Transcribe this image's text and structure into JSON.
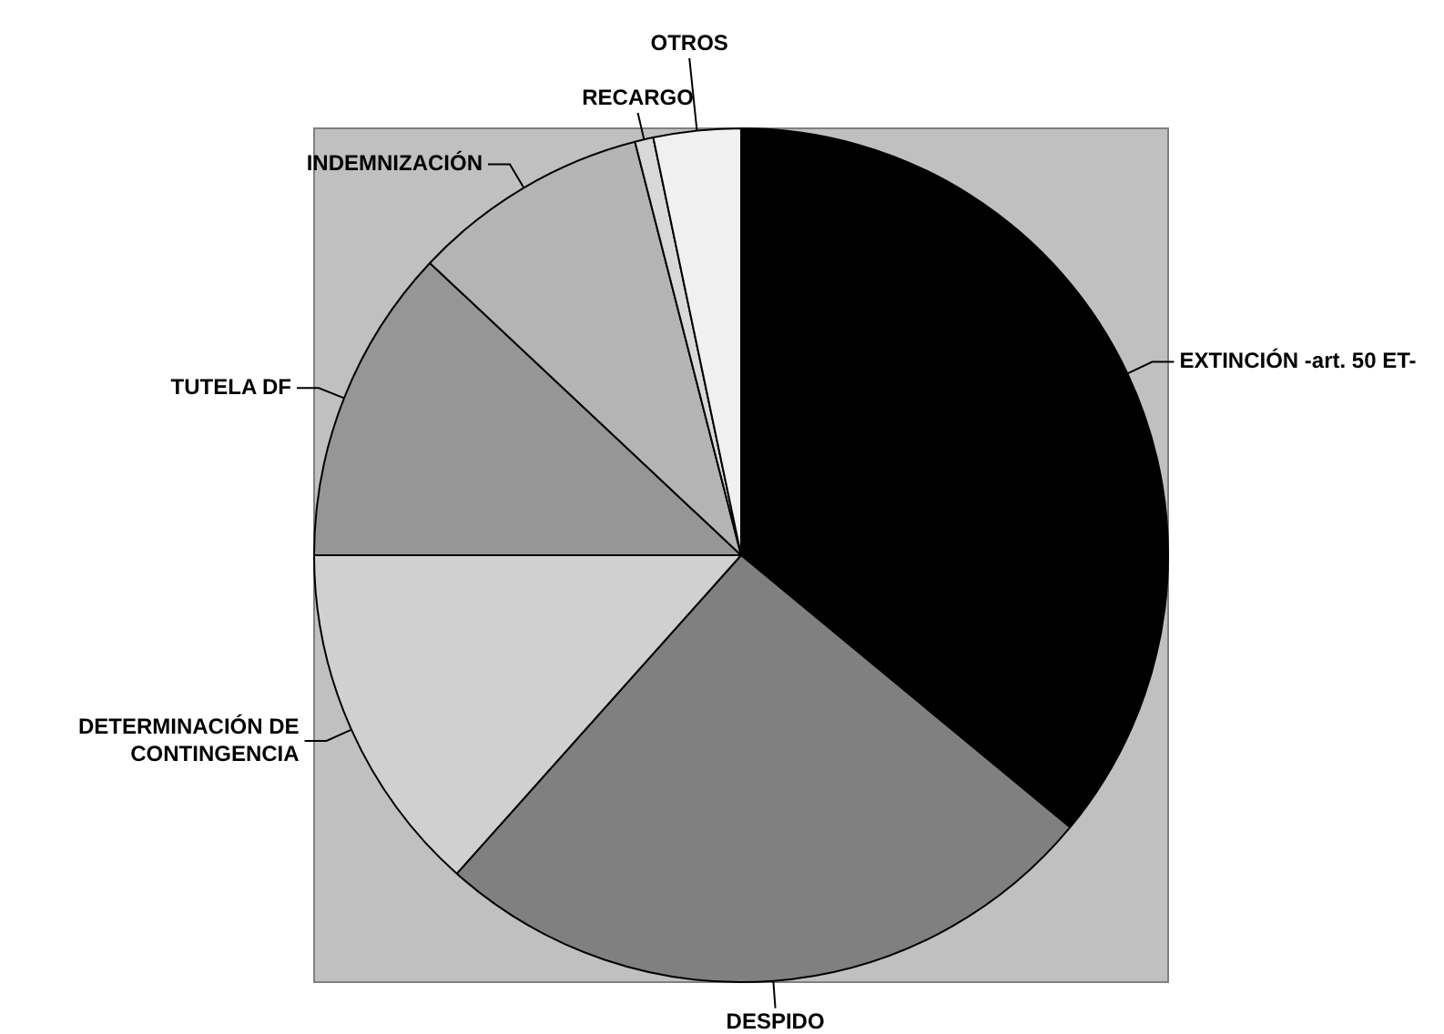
{
  "chart_data": {
    "type": "pie",
    "categories": [
      "EXTINCIÓN -art. 50 ET-",
      "DESPIDO",
      "DETERMINACIÓN DE CONTINGENCIA",
      "TUTELA DF",
      "INDEMNIZACIÓN",
      "RECARGO",
      "OTROS"
    ],
    "values": [
      36,
      25.6,
      13.4,
      12,
      9,
      0.7,
      3.3
    ],
    "colors": [
      "#000000",
      "#808080",
      "#d0d0d0",
      "#969696",
      "#b4b4b4",
      "#d8d8d8",
      "#f0f0f0"
    ],
    "legend": false
  }
}
